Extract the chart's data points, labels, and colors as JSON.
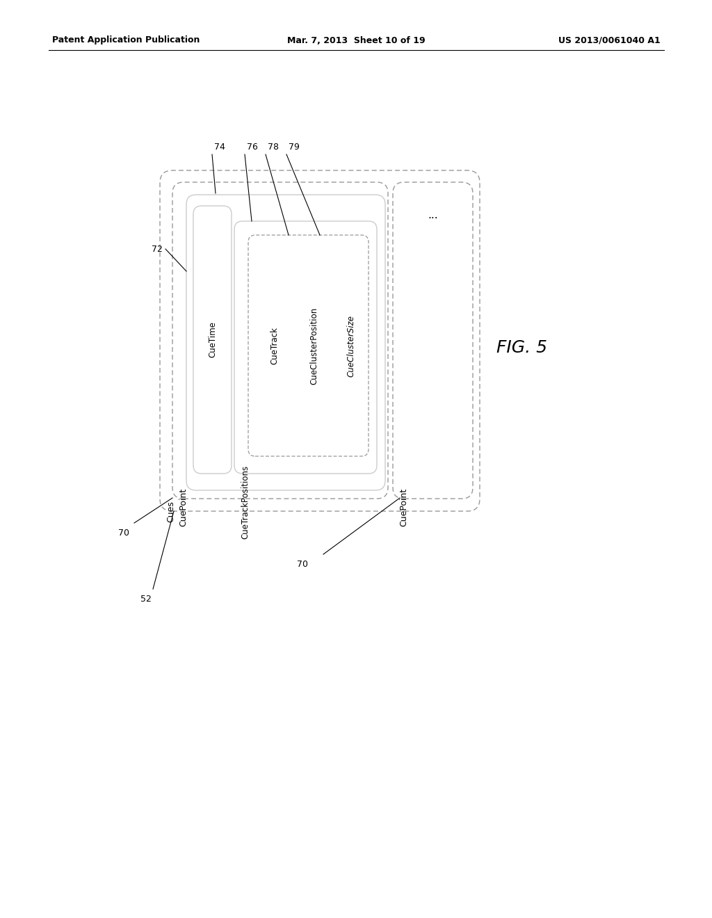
{
  "title_left": "Patent Application Publication",
  "title_mid": "Mar. 7, 2013  Sheet 10 of 19",
  "title_right": "US 2013/0061040 A1",
  "fig_label": "FIG. 5",
  "bg_color": "#ffffff",
  "line_color": "#000000",
  "dashed_color": "#aaaaaa"
}
